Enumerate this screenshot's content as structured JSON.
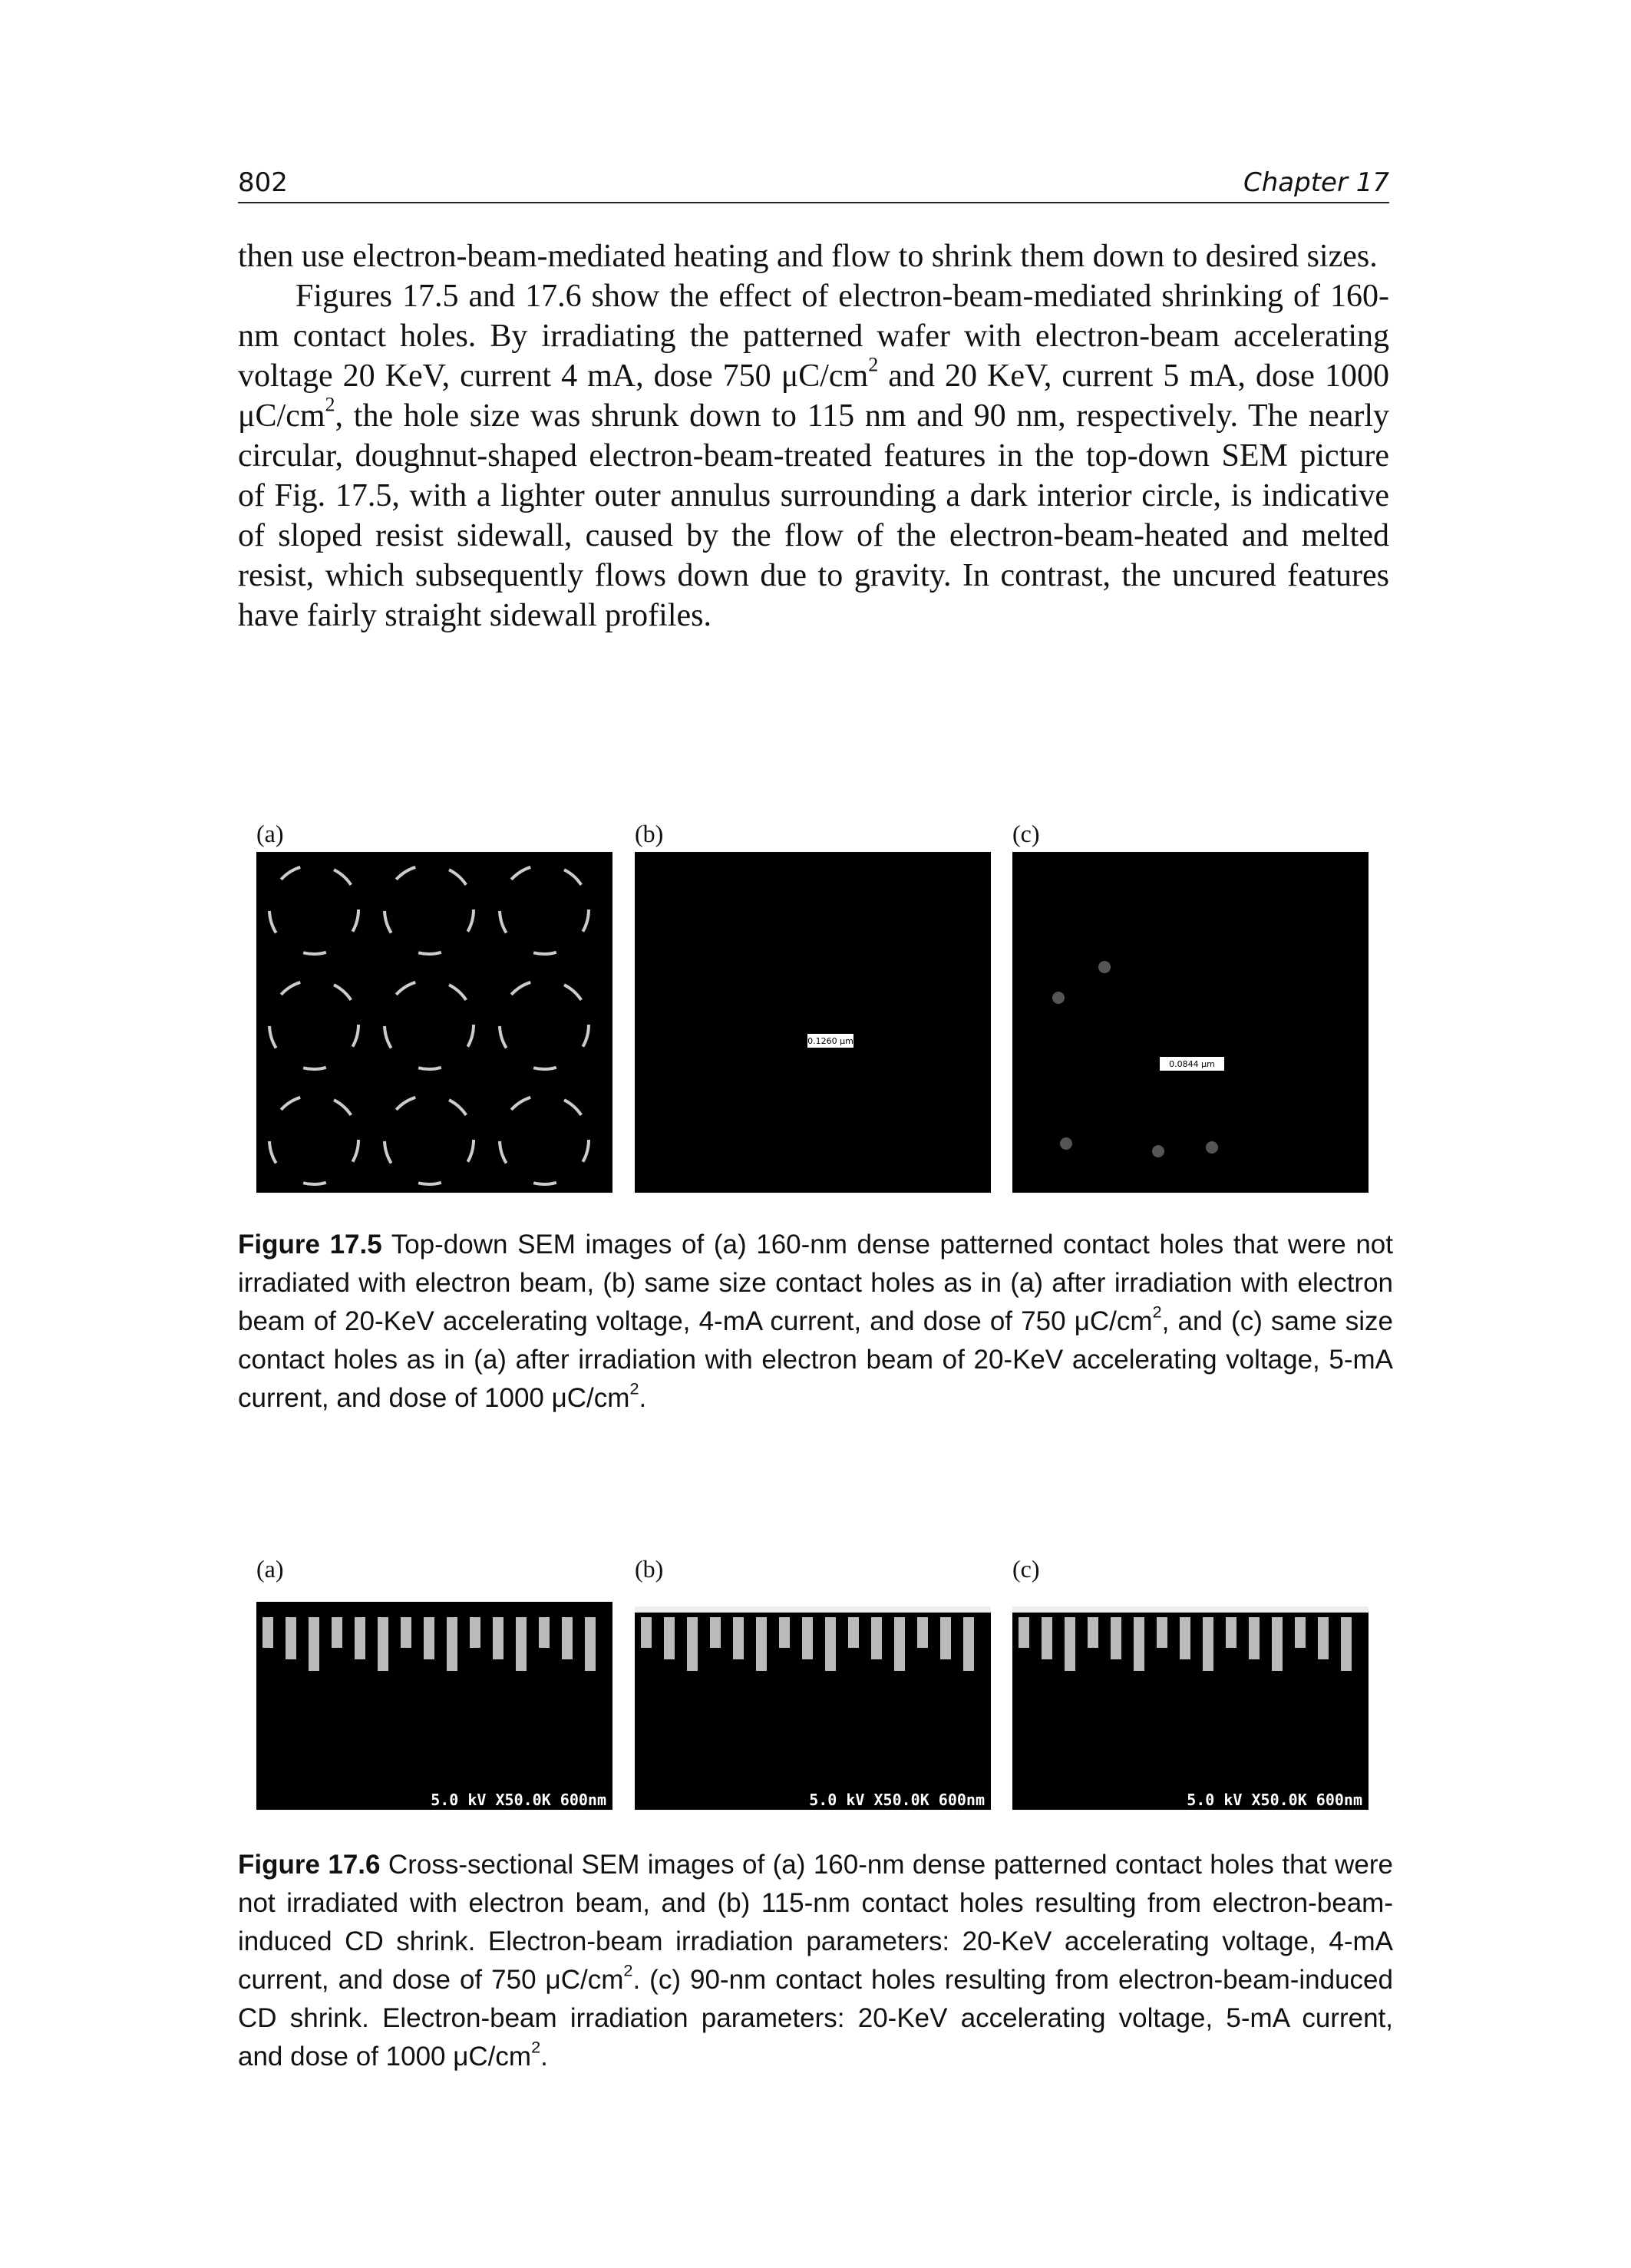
{
  "header": {
    "page_number": "802",
    "chapter": "Chapter 17"
  },
  "body": {
    "paragraphs": [
      [
        "then use electron-beam-mediated heating and flow to shrink them down to desired sizes."
      ],
      [
        "Figures 17.5 and 17.6 show the effect of electron-beam-mediated shrinking of 160-nm contact holes. By irradiating the patterned wafer with electron-beam accelerating voltage 20 KeV, current 4 mA, dose 750 μC/cm",
        {
          "sup": "2"
        },
        " and 20 KeV, current 5 mA, dose 1000 μC/cm",
        {
          "sup": "2"
        },
        ", the hole size was shrunk down to 115 nm and 90 nm, respectively. The nearly circular, doughnut-shaped electron-beam-treated features in the top-down SEM picture of Fig. 17.5, with a lighter outer annulus surrounding a dark interior circle, is indicative of sloped resist sidewall, caused by the flow of the electron-beam-heated and melted resist, which subsequently flows down due to gravity. In contrast, the uncured features have fairly straight sidewall profiles."
      ]
    ]
  },
  "figures": [
    {
      "panels": [
        {
          "label": "(a)"
        },
        {
          "label": "(b)",
          "scale_bar": "0.1260 μm"
        },
        {
          "label": "(c)",
          "scale_bar": "0.0844 μm"
        }
      ],
      "caption": {
        "label": "Figure 17.5",
        "text": [
          " Top-down SEM images of (a) 160-nm dense patterned contact holes that were not irradiated with electron beam, (b) same size contact holes as in (a) after irradiation with electron beam of 20-KeV accelerating voltage, 4-mA current, and dose of 750 μC/cm",
          {
            "sup": "2"
          },
          ", and (c) same size contact holes as in (a) after irradiation with electron beam of 20-KeV accelerating voltage, 5-mA current, and dose of 1000 μC/cm",
          {
            "sup": "2"
          },
          "."
        ]
      }
    },
    {
      "panels": [
        {
          "label": "(a)",
          "scale_bar": "5.0 kV X50.0K 600nm"
        },
        {
          "label": "(b)",
          "scale_bar": "5.0 kV X50.0K 600nm"
        },
        {
          "label": "(c)",
          "scale_bar": "5.0 kV X50.0K 600nm"
        }
      ],
      "caption": {
        "label": "Figure 17.6",
        "text": [
          " Cross-sectional SEM images of (a) 160-nm dense patterned contact holes that were not irradiated with electron beam, and (b) 115-nm contact holes resulting from electron-beam-induced CD shrink. Electron-beam irradiation parameters: 20-KeV accelerating voltage, 4-mA current, and dose of 750 μC/cm",
          {
            "sup": "2"
          },
          ". (c) 90-nm contact holes resulting from electron-beam-induced CD shrink. Electron-beam irradiation parameters: 20-KeV accelerating voltage, 5-mA current, and dose of 1000 μC/cm",
          {
            "sup": "2"
          },
          "."
        ]
      }
    }
  ]
}
